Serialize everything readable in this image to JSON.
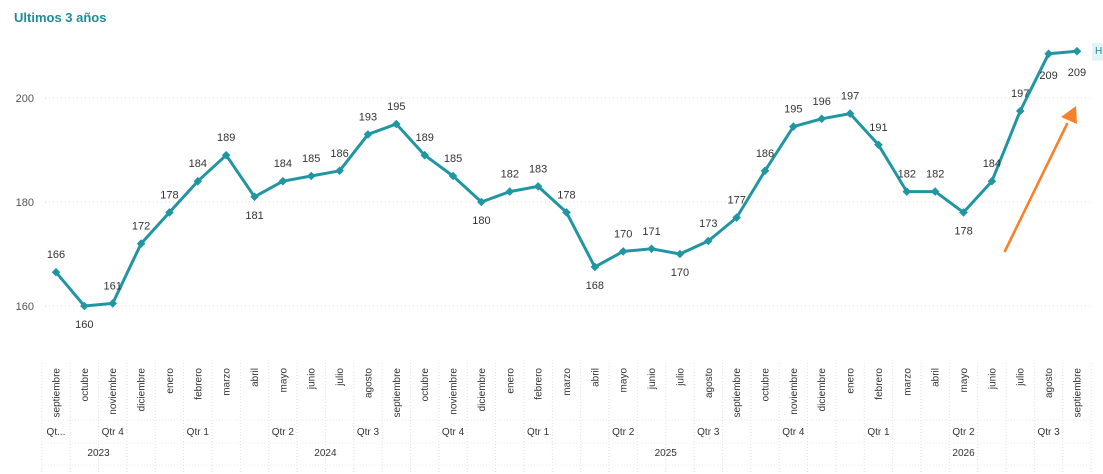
{
  "title": "Ultimos 3 años",
  "badge": "H",
  "chart_data": {
    "type": "line",
    "ylim": [
      150,
      210
    ],
    "yticks": [
      160,
      180,
      200
    ],
    "grid": true,
    "line_color": "#2196a3",
    "arrow_color": "#f5822a",
    "months": [
      "septiembre",
      "octubre",
      "noviembre",
      "diciembre",
      "enero",
      "febrero",
      "marzo",
      "abril",
      "mayo",
      "junio",
      "julio",
      "agosto",
      "septiembre",
      "octubre",
      "noviembre",
      "diciembre",
      "enero",
      "febrero",
      "marzo",
      "abril",
      "mayo",
      "junio",
      "julio",
      "agosto",
      "septiembre",
      "octubre",
      "noviembre",
      "diciembre",
      "enero",
      "febrero",
      "marzo",
      "abril",
      "mayo",
      "junio",
      "julio",
      "agosto",
      "septiembre"
    ],
    "values": [
      166.5,
      160,
      160.5,
      172,
      178,
      184,
      189,
      181,
      184,
      185,
      186,
      193,
      195,
      189,
      185,
      180,
      182,
      183,
      178,
      167.5,
      170.5,
      171,
      170,
      172.5,
      177,
      186,
      194.5,
      196,
      197,
      191,
      182,
      182,
      178,
      184,
      197.5,
      208.5,
      209
    ],
    "labels": [
      "166",
      "160",
      "161",
      "172",
      "178",
      "184",
      "189",
      "181",
      "184",
      "185",
      "186",
      "193",
      "195",
      "189",
      "185",
      "180",
      "182",
      "183",
      "178",
      "168",
      "170",
      "171",
      "170",
      "173",
      "177",
      "186",
      "195",
      "196",
      "197",
      "191",
      "182",
      "182",
      "178",
      "184",
      "197",
      "209",
      "209"
    ],
    "quarters": [
      {
        "label": "Qt...",
        "count": 1
      },
      {
        "label": "Qtr 4",
        "count": 3
      },
      {
        "label": "Qtr 1",
        "count": 3
      },
      {
        "label": "Qtr 2",
        "count": 3
      },
      {
        "label": "Qtr 3",
        "count": 3
      },
      {
        "label": "Qtr 4",
        "count": 3
      },
      {
        "label": "Qtr 1",
        "count": 3
      },
      {
        "label": "Qtr 2",
        "count": 3
      },
      {
        "label": "Qtr 3",
        "count": 3
      },
      {
        "label": "Qtr 4",
        "count": 3
      },
      {
        "label": "Qtr 1",
        "count": 3
      },
      {
        "label": "Qtr 2",
        "count": 3
      },
      {
        "label": "Qtr 3",
        "count": 3
      }
    ],
    "years": [
      {
        "label": "2023",
        "count": 4
      },
      {
        "label": "2024",
        "count": 12
      },
      {
        "label": "2025",
        "count": 12
      },
      {
        "label": "2026",
        "count": 9
      }
    ]
  }
}
